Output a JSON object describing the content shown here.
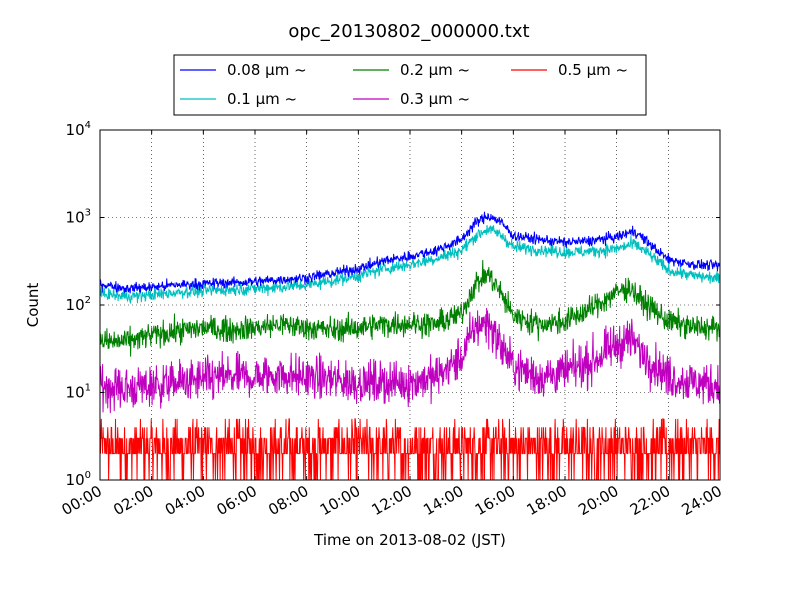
{
  "chart_data": {
    "type": "line",
    "title": "opc_20130802_000000.txt",
    "xlabel": "Time on 2013-08-02 (JST)",
    "ylabel": "Count",
    "y_scale": "log",
    "ylim": [
      1,
      10000
    ],
    "xlim_hours": [
      0,
      24
    ],
    "y_ticks": [
      {
        "value": 1,
        "base": "10",
        "exp": "0"
      },
      {
        "value": 10,
        "base": "10",
        "exp": "1"
      },
      {
        "value": 100,
        "base": "10",
        "exp": "2"
      },
      {
        "value": 1000,
        "base": "10",
        "exp": "3"
      },
      {
        "value": 10000,
        "base": "10",
        "exp": "4"
      }
    ],
    "x_ticks": [
      "00:00",
      "02:00",
      "04:00",
      "06:00",
      "08:00",
      "10:00",
      "12:00",
      "14:00",
      "16:00",
      "18:00",
      "20:00",
      "22:00",
      "24:00"
    ],
    "grid": true,
    "legend_position": "top-center",
    "series": [
      {
        "name": "0.08 μm ~",
        "color": "#0000ff",
        "points": [
          [
            0,
            175
          ],
          [
            1,
            155
          ],
          [
            2,
            160
          ],
          [
            3,
            170
          ],
          [
            4,
            175
          ],
          [
            5,
            180
          ],
          [
            6,
            185
          ],
          [
            7,
            195
          ],
          [
            8,
            205
          ],
          [
            9,
            230
          ],
          [
            10,
            260
          ],
          [
            11,
            320
          ],
          [
            12,
            360
          ],
          [
            13,
            420
          ],
          [
            14,
            560
          ],
          [
            14.5,
            850
          ],
          [
            15,
            1050
          ],
          [
            15.5,
            900
          ],
          [
            16,
            620
          ],
          [
            17,
            560
          ],
          [
            18,
            520
          ],
          [
            19,
            540
          ],
          [
            20,
            600
          ],
          [
            20.7,
            700
          ],
          [
            21.2,
            520
          ],
          [
            22,
            330
          ],
          [
            23,
            290
          ],
          [
            24,
            280
          ]
        ]
      },
      {
        "name": "0.1 μm ~",
        "color": "#00bfbf",
        "points": [
          [
            0,
            135
          ],
          [
            1,
            125
          ],
          [
            2,
            130
          ],
          [
            3,
            140
          ],
          [
            4,
            145
          ],
          [
            5,
            150
          ],
          [
            6,
            155
          ],
          [
            7,
            160
          ],
          [
            8,
            170
          ],
          [
            9,
            190
          ],
          [
            10,
            215
          ],
          [
            11,
            260
          ],
          [
            12,
            290
          ],
          [
            13,
            340
          ],
          [
            14,
            420
          ],
          [
            14.5,
            600
          ],
          [
            15,
            740
          ],
          [
            15.5,
            640
          ],
          [
            16,
            460
          ],
          [
            17,
            430
          ],
          [
            18,
            400
          ],
          [
            19,
            410
          ],
          [
            20,
            440
          ],
          [
            20.7,
            500
          ],
          [
            21.2,
            390
          ],
          [
            22,
            250
          ],
          [
            23,
            215
          ],
          [
            24,
            200
          ]
        ]
      },
      {
        "name": "0.2 μm ~",
        "color": "#008000",
        "points": [
          [
            0,
            38
          ],
          [
            1,
            38
          ],
          [
            2,
            45
          ],
          [
            3,
            50
          ],
          [
            4,
            55
          ],
          [
            5,
            52
          ],
          [
            6,
            55
          ],
          [
            7,
            60
          ],
          [
            8,
            55
          ],
          [
            9,
            52
          ],
          [
            10,
            55
          ],
          [
            11,
            60
          ],
          [
            12,
            62
          ],
          [
            13,
            60
          ],
          [
            14,
            80
          ],
          [
            14.5,
            170
          ],
          [
            15,
            230
          ],
          [
            15.5,
            140
          ],
          [
            16,
            75
          ],
          [
            17,
            60
          ],
          [
            18,
            65
          ],
          [
            19,
            90
          ],
          [
            20,
            140
          ],
          [
            20.5,
            160
          ],
          [
            21,
            110
          ],
          [
            22,
            65
          ],
          [
            23,
            55
          ],
          [
            24,
            55
          ]
        ]
      },
      {
        "name": "0.3 μm ~",
        "color": "#bf00bf",
        "points": [
          [
            0,
            12
          ],
          [
            1,
            11
          ],
          [
            2,
            12
          ],
          [
            3,
            13
          ],
          [
            4,
            14
          ],
          [
            5,
            15
          ],
          [
            6,
            15
          ],
          [
            7,
            16
          ],
          [
            8,
            15
          ],
          [
            9,
            14
          ],
          [
            10,
            13
          ],
          [
            11,
            13
          ],
          [
            12,
            13
          ],
          [
            13,
            15
          ],
          [
            14,
            25
          ],
          [
            14.5,
            55
          ],
          [
            15,
            65
          ],
          [
            15.5,
            35
          ],
          [
            16,
            20
          ],
          [
            17,
            15
          ],
          [
            18,
            17
          ],
          [
            19,
            22
          ],
          [
            20,
            35
          ],
          [
            20.5,
            42
          ],
          [
            21,
            28
          ],
          [
            22,
            15
          ],
          [
            23,
            13
          ],
          [
            24,
            12
          ]
        ]
      },
      {
        "name": "0.5 μm ~",
        "color": "#ff0000",
        "points": [
          [
            0,
            2
          ],
          [
            6,
            2
          ],
          [
            12,
            2
          ],
          [
            18,
            2
          ],
          [
            24,
            2
          ]
        ]
      }
    ]
  }
}
